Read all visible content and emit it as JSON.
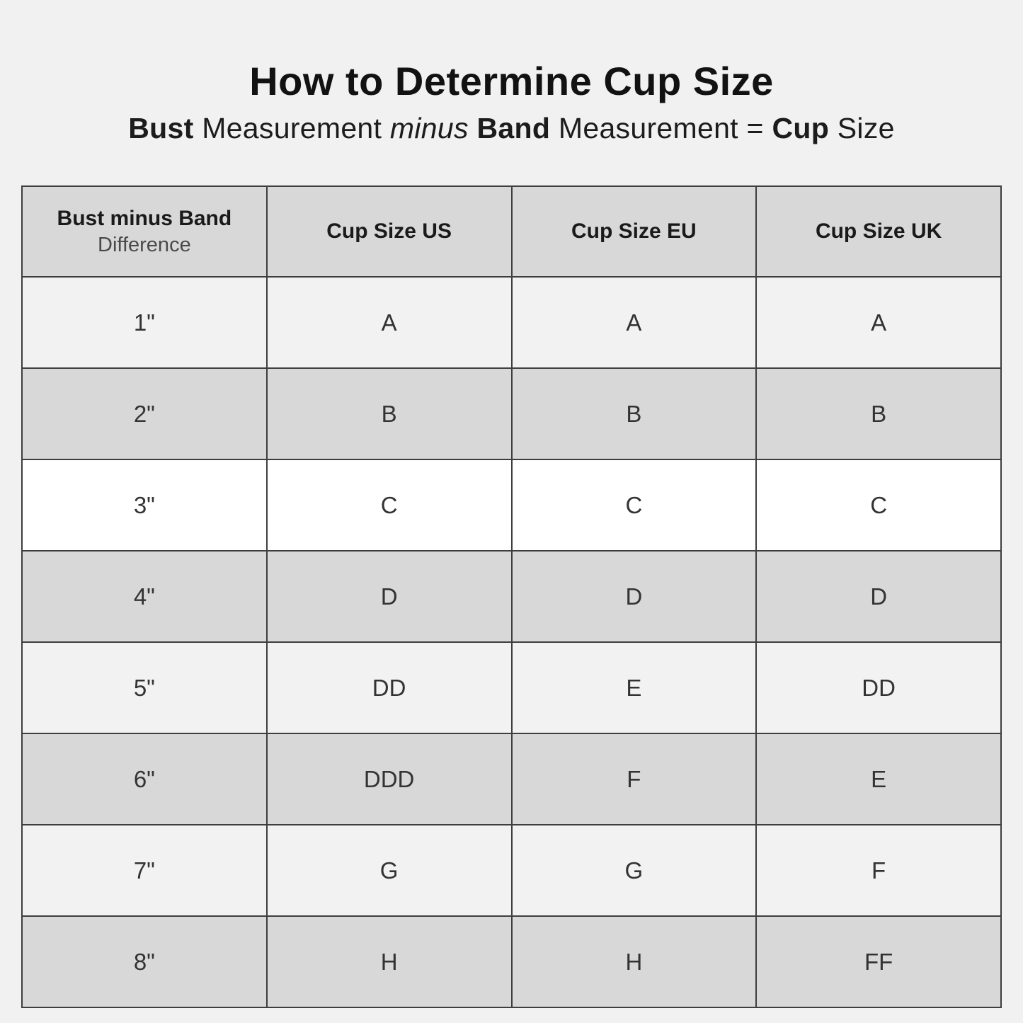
{
  "page": {
    "title": "How to Determine Cup Size",
    "subtitle_segments": [
      {
        "text": "Bust",
        "style": "bold"
      },
      {
        "text": " Measurement ",
        "style": "regular"
      },
      {
        "text": "minus",
        "style": "italic"
      },
      {
        "text": " ",
        "style": "regular"
      },
      {
        "text": "Band",
        "style": "bold"
      },
      {
        "text": " Measurement = ",
        "style": "regular"
      },
      {
        "text": "Cup",
        "style": "bold"
      },
      {
        "text": " Size",
        "style": "regular"
      }
    ]
  },
  "table": {
    "header": {
      "difference_line1": "Bust minus Band",
      "difference_line2": "Difference",
      "cup_us": "Cup Size US",
      "cup_eu": "Cup Size EU",
      "cup_uk": "Cup Size UK"
    },
    "rows": [
      {
        "difference": "1\"",
        "us": "A",
        "eu": "A",
        "uk": "A"
      },
      {
        "difference": "2\"",
        "us": "B",
        "eu": "B",
        "uk": "B"
      },
      {
        "difference": "3\"",
        "us": "C",
        "eu": "C",
        "uk": "C"
      },
      {
        "difference": "4\"",
        "us": "D",
        "eu": "D",
        "uk": "D"
      },
      {
        "difference": "5\"",
        "us": "DD",
        "eu": "E",
        "uk": "DD"
      },
      {
        "difference": "6\"",
        "us": "DDD",
        "eu": "F",
        "uk": "E"
      },
      {
        "difference": "7\"",
        "us": "G",
        "eu": "G",
        "uk": "F"
      },
      {
        "difference": "8\"",
        "us": "H",
        "eu": "H",
        "uk": "FF"
      }
    ]
  },
  "chart_data": {
    "type": "table",
    "title": "How to Determine Cup Size",
    "subtitle": "Bust Measurement minus Band Measurement = Cup Size",
    "columns": [
      "Bust minus Band Difference",
      "Cup Size US",
      "Cup Size EU",
      "Cup Size UK"
    ],
    "rows": [
      [
        "1\"",
        "A",
        "A",
        "A"
      ],
      [
        "2\"",
        "B",
        "B",
        "B"
      ],
      [
        "3\"",
        "C",
        "C",
        "C"
      ],
      [
        "4\"",
        "D",
        "D",
        "D"
      ],
      [
        "5\"",
        "DD",
        "E",
        "DD"
      ],
      [
        "6\"",
        "DDD",
        "F",
        "E"
      ],
      [
        "7\"",
        "G",
        "G",
        "F"
      ],
      [
        "8\"",
        "H",
        "H",
        "FF"
      ]
    ],
    "highlighted_row": "3\""
  },
  "colors": {
    "page_background": "#f1f1f1",
    "header_row": "#d8d8d8",
    "gray_row": "#d8d8d8",
    "light_row": "#f2f2f2",
    "highlight_row": "#ffffff",
    "border": "#3e3e3e",
    "title_text": "#121212",
    "cell_text": "#333333"
  }
}
